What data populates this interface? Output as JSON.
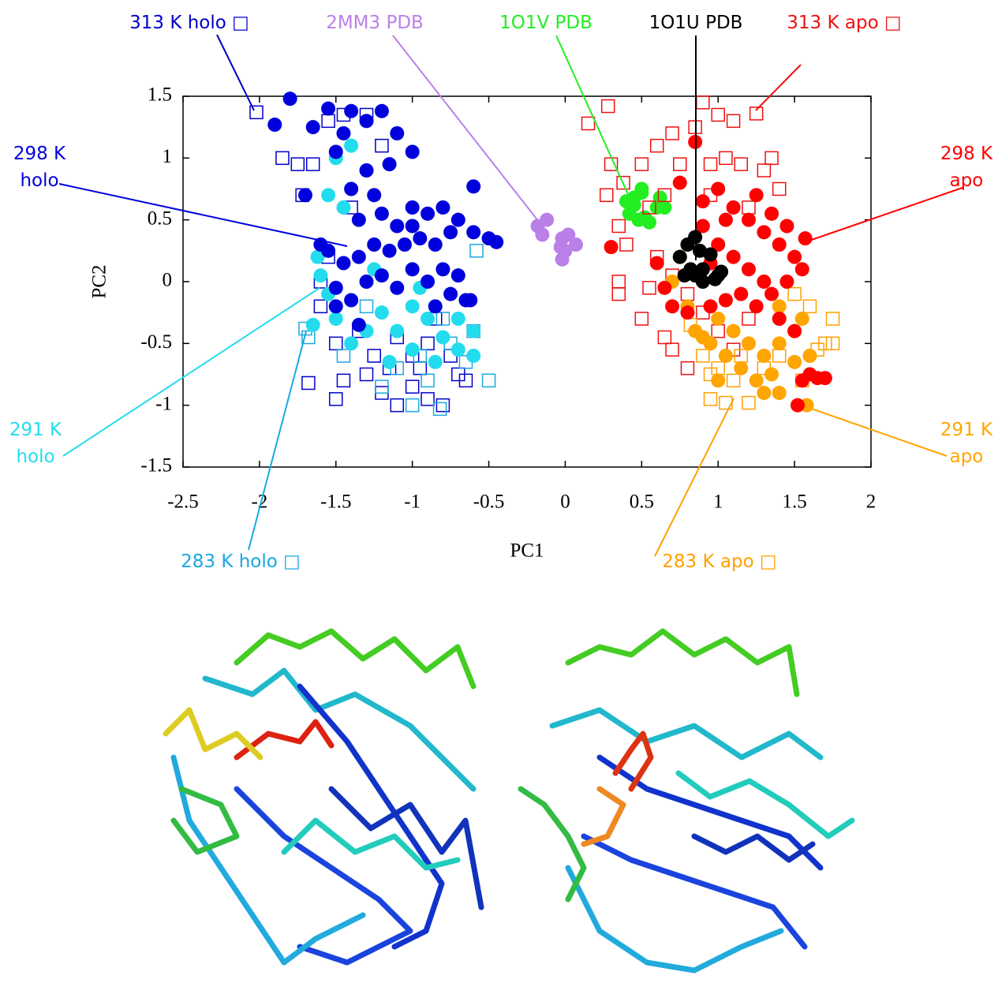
{
  "chart_data": {
    "type": "scatter",
    "xlabel": "PC1",
    "ylabel": "PC2",
    "xlim": [
      -2.5,
      2
    ],
    "ylim": [
      -1.5,
      1.5
    ],
    "xticks": [
      -2.5,
      -2,
      -1.5,
      -1,
      -0.5,
      0,
      0.5,
      1,
      1.5,
      2
    ],
    "yticks": [
      -1.5,
      -1,
      -0.5,
      0,
      0.5,
      1,
      1.5
    ],
    "series": [
      {
        "name": "313 K holo □",
        "color": "#0000cc",
        "marker": "open-square",
        "x": [
          -2.02,
          -1.85,
          -1.75,
          -1.72,
          -1.65,
          -1.55,
          -1.45,
          -1.3,
          -1.2,
          -1.4,
          -1.55,
          -1.6,
          -1.5,
          -1.45,
          -1.5,
          -1.3,
          -1.2,
          -1.1,
          -1.0,
          -0.9,
          -0.8,
          -0.7,
          -0.65,
          -0.75,
          -0.9,
          -1.0,
          -1.1,
          -1.25,
          -1.35,
          -1.68,
          -1.6,
          -0.85,
          -1.15,
          -0.95
        ],
        "y": [
          1.37,
          1.0,
          0.95,
          0.7,
          0.95,
          1.3,
          1.35,
          1.35,
          1.1,
          0.6,
          0.2,
          -0.2,
          -0.5,
          -0.8,
          -0.95,
          -0.75,
          -0.9,
          -1.0,
          -0.85,
          -0.95,
          -1.0,
          -0.75,
          -0.8,
          -0.6,
          -0.5,
          -0.6,
          -0.45,
          -0.6,
          -0.4,
          -0.82,
          0.0,
          -0.3,
          -0.7,
          -0.7
        ]
      },
      {
        "name": "283 K holo □",
        "color": "#1aa8e0",
        "marker": "open-square",
        "x": [
          -1.7,
          -1.68,
          -0.6,
          -0.58,
          -0.5,
          -0.82,
          -0.9,
          -1.2,
          -1.1,
          -0.75,
          -1.3,
          -1.45,
          -0.95,
          -0.65,
          -1.0,
          -0.8
        ],
        "y": [
          -0.38,
          -0.45,
          -0.4,
          0.25,
          -0.8,
          -1.03,
          -0.8,
          -0.85,
          -0.7,
          -0.5,
          -0.2,
          -0.6,
          -0.6,
          -0.65,
          -1.0,
          -0.3
        ]
      },
      {
        "name": "291 K holo",
        "color": "#22dcee",
        "marker": "circle",
        "x": [
          -1.6,
          -1.55,
          -1.5,
          -1.65,
          -1.5,
          -1.45,
          -1.4,
          -1.3,
          -1.2,
          -1.1,
          -1.0,
          -0.9,
          -0.8,
          -0.7,
          -0.6,
          -0.6,
          -0.7,
          -0.85,
          -1.0,
          -1.15,
          -0.95,
          -1.25,
          -1.55,
          -1.4,
          -1.62
        ],
        "y": [
          0.05,
          -0.1,
          -0.3,
          -0.35,
          1.0,
          0.6,
          -0.5,
          -0.4,
          -0.25,
          -0.4,
          -0.2,
          -0.3,
          -0.45,
          -0.55,
          -0.4,
          -0.6,
          -0.3,
          -0.65,
          -0.55,
          -0.65,
          -0.05,
          0.1,
          0.7,
          1.1,
          0.2
        ]
      },
      {
        "name": "298 K holo",
        "color": "#0000dd",
        "marker": "circle",
        "x": [
          -1.8,
          -1.9,
          -1.65,
          -1.55,
          -1.45,
          -1.4,
          -1.3,
          -1.2,
          -1.1,
          -1.0,
          -1.15,
          -1.3,
          -1.5,
          -1.7,
          -1.4,
          -1.25,
          -1.35,
          -1.2,
          -1.0,
          -0.9,
          -0.8,
          -0.7,
          -0.6,
          -0.5,
          -0.45,
          -0.6,
          -0.75,
          -0.85,
          -0.95,
          -1.05,
          -1.15,
          -1.25,
          -1.35,
          -1.45,
          -1.55,
          -1.6,
          -1.5,
          -1.4,
          -1.3,
          -1.2,
          -1.1,
          -1.0,
          -0.9,
          -0.8,
          -0.7,
          -0.65,
          -0.75,
          -0.85,
          -1.35,
          -1.5,
          -0.62,
          -1.0,
          -1.1
        ],
        "y": [
          1.48,
          1.27,
          1.25,
          1.4,
          1.2,
          1.38,
          1.3,
          1.38,
          1.2,
          1.05,
          0.95,
          0.9,
          1.05,
          0.7,
          0.75,
          0.7,
          0.5,
          0.55,
          0.6,
          0.55,
          0.6,
          0.5,
          0.4,
          0.35,
          0.32,
          0.77,
          0.4,
          0.3,
          0.35,
          0.3,
          0.25,
          0.3,
          0.2,
          0.15,
          0.25,
          0.3,
          -0.05,
          -0.15,
          0.0,
          0.05,
          -0.05,
          0.1,
          0.0,
          0.1,
          0.05,
          -0.15,
          -0.1,
          -0.2,
          -0.35,
          -0.2,
          -0.15,
          0.45,
          0.45
        ]
      },
      {
        "name": "2MM3 PDB",
        "color": "#bb80e8",
        "marker": "circle",
        "x": [
          -0.18,
          -0.15,
          -0.12,
          -0.02,
          0.02,
          0.07,
          -0.03,
          -0.02,
          0.0
        ],
        "y": [
          0.45,
          0.38,
          0.5,
          0.35,
          0.38,
          0.3,
          0.28,
          0.18,
          0.25
        ]
      },
      {
        "name": "1O1V PDB",
        "color": "#22ee22",
        "marker": "circle",
        "x": [
          0.4,
          0.45,
          0.5,
          0.42,
          0.48,
          0.52,
          0.6,
          0.65,
          0.62,
          0.55,
          0.45,
          0.5
        ],
        "y": [
          0.65,
          0.68,
          0.72,
          0.55,
          0.5,
          0.52,
          0.6,
          0.6,
          0.68,
          0.48,
          0.62,
          0.75
        ]
      },
      {
        "name": "313 K apo □",
        "color": "#ee1111",
        "marker": "open-square",
        "x": [
          0.28,
          0.15,
          0.3,
          0.27,
          0.38,
          0.5,
          0.6,
          0.7,
          0.85,
          0.9,
          1.0,
          1.1,
          1.25,
          1.15,
          1.3,
          1.4,
          1.35,
          1.05,
          0.95,
          0.75,
          0.65,
          0.55,
          0.35,
          0.4,
          0.35,
          0.35,
          0.5,
          0.65,
          0.7,
          0.8,
          0.55,
          0.6,
          0.7,
          0.8,
          0.9,
          1.0,
          1.1,
          1.2,
          0.95,
          1.2
        ],
        "y": [
          1.42,
          1.28,
          0.95,
          0.7,
          0.8,
          0.95,
          1.1,
          1.2,
          1.25,
          1.45,
          1.35,
          1.3,
          1.36,
          0.95,
          0.9,
          0.75,
          1.0,
          1.0,
          0.95,
          0.95,
          0.7,
          0.6,
          0.45,
          0.3,
          0.0,
          -0.1,
          -0.3,
          -0.45,
          -0.55,
          -0.7,
          -0.05,
          0.2,
          0.05,
          -0.1,
          -0.25,
          -0.4,
          -0.55,
          -0.3,
          0.7,
          0.6
        ]
      },
      {
        "name": "283 K apo □",
        "color": "#ffa000",
        "marker": "open-square",
        "x": [
          0.82,
          0.9,
          0.95,
          1.05,
          1.2,
          1.3,
          1.4,
          1.55,
          1.65,
          1.7,
          1.75,
          1.75,
          1.6,
          1.5,
          1.0,
          1.1,
          1.15,
          0.95
        ],
        "y": [
          -0.35,
          -0.6,
          -0.95,
          -0.98,
          -0.98,
          -0.7,
          -0.6,
          -0.8,
          -0.55,
          -0.5,
          -0.3,
          -0.5,
          -0.2,
          -0.1,
          -0.7,
          -0.8,
          -0.6,
          -0.75
        ]
      },
      {
        "name": "291 K apo",
        "color": "#ffa500",
        "marker": "circle",
        "x": [
          1.58,
          1.4,
          1.3,
          1.25,
          1.15,
          1.05,
          0.95,
          0.9,
          0.85,
          0.75,
          0.7,
          0.8,
          1.0,
          1.1,
          1.2,
          1.3,
          1.4,
          1.5,
          1.55,
          1.6,
          1.5,
          1.4,
          1.35,
          1.0
        ],
        "y": [
          -1.0,
          -0.9,
          -0.9,
          -0.8,
          -0.7,
          -0.6,
          -0.5,
          -0.45,
          -0.4,
          0.2,
          0.0,
          -0.2,
          -0.3,
          -0.4,
          -0.5,
          -0.6,
          -0.5,
          -0.4,
          -0.3,
          -0.6,
          -0.65,
          -0.2,
          -0.75,
          -0.8
        ]
      },
      {
        "name": "298 K apo",
        "color": "#ff0000",
        "marker": "circle",
        "x": [
          0.85,
          0.75,
          0.9,
          1.0,
          1.1,
          1.2,
          1.3,
          1.4,
          1.5,
          1.57,
          1.55,
          1.45,
          1.35,
          1.25,
          1.15,
          1.05,
          0.95,
          0.9,
          0.3,
          0.6,
          0.65,
          0.7,
          1.0,
          1.1,
          1.2,
          1.3,
          1.35,
          1.25,
          1.45,
          1.4,
          1.5,
          1.6,
          1.65,
          1.7,
          1.55,
          1.52,
          0.8,
          1.05,
          0.95
        ],
        "y": [
          1.13,
          0.8,
          0.65,
          0.75,
          0.6,
          0.5,
          0.4,
          0.3,
          0.2,
          0.35,
          0.1,
          0.0,
          -0.1,
          -0.2,
          -0.1,
          -0.15,
          -0.2,
          0.45,
          0.28,
          0.15,
          -0.05,
          -0.2,
          0.3,
          0.2,
          0.1,
          0.0,
          0.55,
          0.7,
          0.45,
          -0.3,
          -0.4,
          -0.75,
          -0.78,
          -0.78,
          -0.8,
          -1.0,
          -0.25,
          0.5,
          0.15
        ]
      },
      {
        "name": "1O1U PDB",
        "color": "#000000",
        "marker": "circle",
        "x": [
          0.85,
          0.88,
          0.8,
          0.82,
          0.78,
          0.85,
          0.9,
          0.95,
          1.0,
          1.02,
          0.98,
          0.9,
          0.75
        ],
        "y": [
          0.36,
          0.25,
          0.3,
          0.1,
          0.05,
          0.05,
          0.0,
          0.22,
          0.05,
          0.08,
          0.02,
          0.1,
          0.2
        ]
      }
    ]
  }
}
